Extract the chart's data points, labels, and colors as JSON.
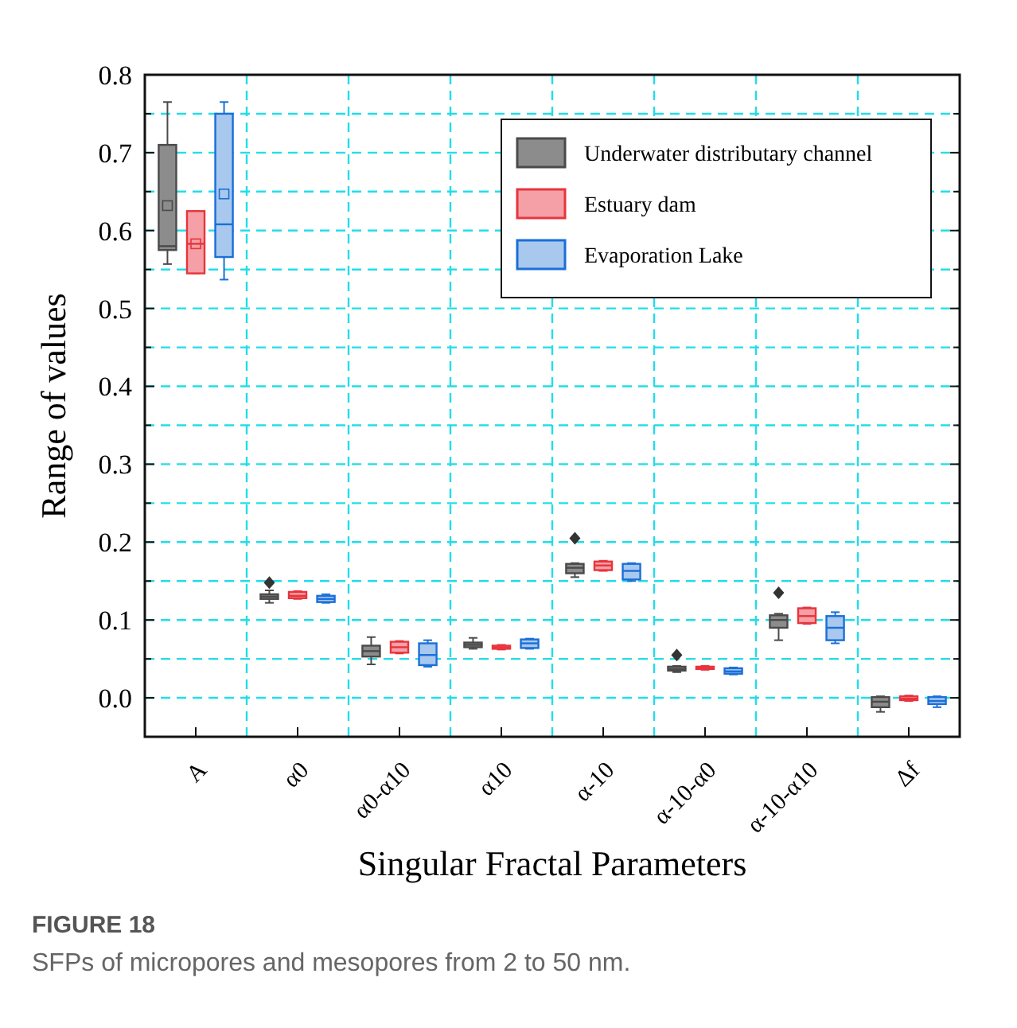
{
  "chart_data": {
    "type": "box",
    "xlabel": "Singular Fractal Parameters",
    "ylabel": "Range of values",
    "categories": [
      "A",
      "α0",
      "α0-α10",
      "α10",
      "α-10",
      "α-10-α0",
      "α-10-α10",
      "Δf"
    ],
    "ylim": [
      -0.05,
      0.8
    ],
    "yticks": [
      {
        "value": -0.05,
        "label": null
      },
      {
        "value": 0,
        "label": "0.0"
      },
      {
        "value": 0.05,
        "label": null
      },
      {
        "value": 0.1,
        "label": "0.1"
      },
      {
        "value": 0.15,
        "label": null
      },
      {
        "value": 0.2,
        "label": "0.2"
      },
      {
        "value": 0.25,
        "label": null
      },
      {
        "value": 0.3,
        "label": "0.3"
      },
      {
        "value": 0.35,
        "label": null
      },
      {
        "value": 0.4,
        "label": "0.4"
      },
      {
        "value": 0.45,
        "label": null
      },
      {
        "value": 0.5,
        "label": "0.5"
      },
      {
        "value": 0.55,
        "label": null
      },
      {
        "value": 0.6,
        "label": "0.6"
      },
      {
        "value": 0.65,
        "label": null
      },
      {
        "value": 0.7,
        "label": "0.7"
      },
      {
        "value": 0.75,
        "label": null
      },
      {
        "value": 0.8,
        "label": "0.8"
      }
    ],
    "grid": true,
    "legend": "top right",
    "series": [
      {
        "name": "Underwater distributary channel",
        "color": "#8c8c8c",
        "boxes": [
          {
            "low": 0.557,
            "q1": 0.575,
            "median": 0.58,
            "q3": 0.71,
            "high": 0.765,
            "mean": 0.632
          },
          {
            "low": 0.122,
            "q1": 0.127,
            "median": 0.13,
            "q3": 0.133,
            "high": 0.138,
            "outliers": [
              0.148
            ]
          },
          {
            "low": 0.043,
            "q1": 0.053,
            "median": 0.06,
            "q3": 0.067,
            "high": 0.078
          },
          {
            "low": 0.063,
            "q1": 0.065,
            "median": 0.068,
            "q3": 0.071,
            "high": 0.077
          },
          {
            "low": 0.155,
            "q1": 0.16,
            "median": 0.167,
            "q3": 0.172,
            "high": 0.173,
            "outliers": [
              0.205
            ]
          },
          {
            "low": 0.033,
            "q1": 0.035,
            "median": 0.037,
            "q3": 0.04,
            "high": 0.041,
            "outliers": [
              0.055
            ]
          },
          {
            "low": 0.074,
            "q1": 0.09,
            "median": 0.1,
            "q3": 0.106,
            "high": 0.108,
            "outliers": [
              0.135
            ]
          },
          {
            "low": -0.018,
            "q1": -0.012,
            "median": -0.005,
            "q3": 0.001,
            "high": 0.002
          }
        ]
      },
      {
        "name": "Estuary dam",
        "color": "#f4a0a6",
        "boxes": [
          {
            "low": 0.545,
            "q1": 0.545,
            "median": 0.583,
            "q3": 0.625,
            "high": 0.625,
            "mean": 0.583
          },
          {
            "low": 0.127,
            "q1": 0.128,
            "median": 0.131,
            "q3": 0.136,
            "high": 0.137
          },
          {
            "low": 0.057,
            "q1": 0.058,
            "median": 0.065,
            "q3": 0.072,
            "high": 0.073
          },
          {
            "low": 0.062,
            "q1": 0.063,
            "median": 0.065,
            "q3": 0.067,
            "high": 0.068
          },
          {
            "low": 0.163,
            "q1": 0.164,
            "median": 0.17,
            "q3": 0.175,
            "high": 0.176
          },
          {
            "low": 0.036,
            "q1": 0.037,
            "median": 0.038,
            "q3": 0.04,
            "high": 0.041
          },
          {
            "low": 0.095,
            "q1": 0.096,
            "median": 0.105,
            "q3": 0.115,
            "high": 0.116
          },
          {
            "low": -0.004,
            "q1": -0.003,
            "median": -0.001,
            "q3": 0.002,
            "high": 0.003
          }
        ]
      },
      {
        "name": "Evaporation Lake",
        "color": "#a8c8ee",
        "boxes": [
          {
            "low": 0.537,
            "q1": 0.566,
            "median": 0.608,
            "q3": 0.75,
            "high": 0.765,
            "mean": 0.647
          },
          {
            "low": 0.122,
            "q1": 0.123,
            "median": 0.127,
            "q3": 0.131,
            "high": 0.133
          },
          {
            "low": 0.04,
            "q1": 0.042,
            "median": 0.055,
            "q3": 0.07,
            "high": 0.074
          },
          {
            "low": 0.063,
            "q1": 0.064,
            "median": 0.07,
            "q3": 0.075,
            "high": 0.076
          },
          {
            "low": 0.15,
            "q1": 0.152,
            "median": 0.163,
            "q3": 0.172,
            "high": 0.173
          },
          {
            "low": 0.03,
            "q1": 0.031,
            "median": 0.034,
            "q3": 0.038,
            "high": 0.039
          },
          {
            "low": 0.07,
            "q1": 0.074,
            "median": 0.09,
            "q3": 0.105,
            "high": 0.11
          },
          {
            "low": -0.012,
            "q1": -0.008,
            "median": -0.004,
            "q3": 0.001,
            "high": 0.002
          }
        ]
      }
    ],
    "annotations": [
      "FIGURE 18",
      "SFPs of micropores and mesopores from 2 to 50 nm."
    ]
  }
}
